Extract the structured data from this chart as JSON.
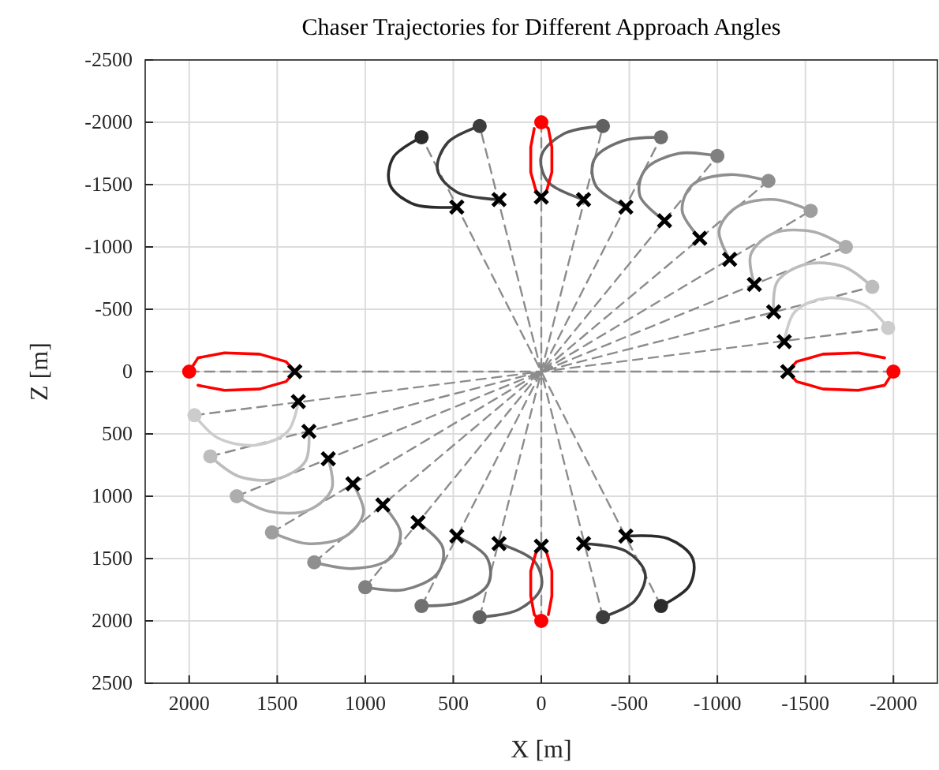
{
  "chart_data": {
    "type": "line",
    "title": "Chaser Trajectories for Different Approach Angles",
    "xlabel": "X [m]",
    "ylabel": "Z [m]",
    "xlim": [
      2250,
      -2250
    ],
    "xticks": [
      2000,
      1500,
      1000,
      500,
      0,
      -500,
      -1000,
      -1500,
      -2000
    ],
    "ylim": [
      2500,
      -2500
    ],
    "yticks": [
      -2500,
      -2000,
      -1500,
      -1000,
      -500,
      0,
      500,
      1000,
      1500,
      2000,
      2500
    ],
    "grid": true,
    "series": [
      {
        "line_style": "dashed",
        "color": "#8c8c8c",
        "x": [
          2000,
          0,
          -2000
        ],
        "values": [
          0,
          0,
          0
        ]
      },
      {
        "line_style": "dashed",
        "color": "#8c8c8c",
        "x": [
          1970,
          0,
          -1970
        ],
        "values": [
          350,
          0,
          -350
        ]
      },
      {
        "line_style": "dashed",
        "color": "#8c8c8c",
        "x": [
          1880,
          0,
          -1880
        ],
        "values": [
          680,
          0,
          -680
        ]
      },
      {
        "line_style": "dashed",
        "color": "#8c8c8c",
        "x": [
          1730,
          0,
          -1730
        ],
        "values": [
          1000,
          0,
          -1000
        ]
      },
      {
        "line_style": "dashed",
        "color": "#8c8c8c",
        "x": [
          1530,
          0,
          -1530
        ],
        "values": [
          1290,
          0,
          -1290
        ]
      },
      {
        "line_style": "dashed",
        "color": "#8c8c8c",
        "x": [
          1290,
          0,
          -1290
        ],
        "values": [
          1530,
          0,
          -1530
        ]
      },
      {
        "line_style": "dashed",
        "color": "#8c8c8c",
        "x": [
          1000,
          0,
          -1000
        ],
        "values": [
          1730,
          0,
          -1730
        ]
      },
      {
        "line_style": "dashed",
        "color": "#8c8c8c",
        "x": [
          680,
          0,
          -680
        ],
        "values": [
          1880,
          0,
          -1880
        ]
      },
      {
        "line_style": "dashed",
        "color": "#8c8c8c",
        "x": [
          350,
          0,
          -350
        ],
        "values": [
          1970,
          0,
          -1970
        ]
      },
      {
        "line_style": "dashed",
        "color": "#8c8c8c",
        "x": [
          0,
          0,
          0
        ],
        "values": [
          2000,
          0,
          -2000
        ]
      },
      {
        "line_style": "dashed",
        "color": "#8c8c8c",
        "x": [
          -350,
          0,
          350
        ],
        "values": [
          1970,
          0,
          -1970
        ]
      },
      {
        "line_style": "dashed",
        "color": "#8c8c8c",
        "x": [
          -680,
          0,
          680
        ],
        "values": [
          1880,
          0,
          -1880
        ]
      },
      {
        "color": "#ff0000",
        "x": [
          -2000,
          -1950,
          -1800,
          -1600,
          -1450,
          -1400,
          -1450,
          -1600,
          -1800,
          -1950
        ],
        "values": [
          0,
          110,
          150,
          140,
          80,
          0,
          -80,
          -140,
          -150,
          -110
        ]
      },
      {
        "color": "#cccccc",
        "x": [
          -1970,
          -1840,
          -1620,
          -1440,
          -1380
        ],
        "values": [
          -350,
          -530,
          -590,
          -480,
          -240
        ]
      },
      {
        "color": "#bdbdbd",
        "x": [
          -1880,
          -1720,
          -1500,
          -1340,
          -1320
        ],
        "values": [
          -680,
          -840,
          -860,
          -720,
          -480
        ]
      },
      {
        "color": "#adadad",
        "x": [
          -1730,
          -1550,
          -1320,
          -1190,
          -1210
        ],
        "values": [
          -1000,
          -1120,
          -1110,
          -940,
          -700
        ]
      },
      {
        "color": "#9e9e9e",
        "x": [
          -1530,
          -1330,
          -1110,
          -1010,
          -1070
        ],
        "values": [
          -1290,
          -1380,
          -1320,
          -1130,
          -900
        ]
      },
      {
        "color": "#8f8f8f",
        "x": [
          -1290,
          -1070,
          -860,
          -800,
          -900
        ],
        "values": [
          -1530,
          -1580,
          -1500,
          -1290,
          -1070
        ]
      },
      {
        "color": "#808080",
        "x": [
          -1000,
          -780,
          -590,
          -560,
          -700
        ],
        "values": [
          -1730,
          -1750,
          -1620,
          -1410,
          -1210
        ]
      },
      {
        "color": "#707070",
        "x": [
          -680,
          -460,
          -300,
          -310,
          -480
        ],
        "values": [
          -1880,
          -1850,
          -1700,
          -1490,
          -1320
        ]
      },
      {
        "color": "#616161",
        "x": [
          -350,
          -130,
          0,
          -40,
          -240
        ],
        "values": [
          -1970,
          -1910,
          -1730,
          -1520,
          -1380
        ]
      },
      {
        "color": "#ff0000",
        "x": [
          0,
          -40,
          -60,
          -60,
          -30,
          0,
          30,
          60,
          60,
          40
        ],
        "values": [
          -2000,
          -1950,
          -1800,
          -1600,
          -1450,
          -1400,
          -1450,
          -1600,
          -1800,
          -1950
        ]
      },
      {
        "color": "#3d3d3d",
        "x": [
          350,
          530,
          590,
          480,
          240
        ],
        "values": [
          -1970,
          -1840,
          -1620,
          -1440,
          -1380
        ]
      },
      {
        "color": "#2b2b2b",
        "x": [
          680,
          840,
          860,
          720,
          480
        ],
        "values": [
          -1880,
          -1720,
          -1500,
          -1340,
          -1320
        ]
      },
      {
        "color": "#ff0000",
        "x": [
          2000,
          1950,
          1800,
          1600,
          1450,
          1400,
          1450,
          1600,
          1800,
          1950
        ],
        "values": [
          0,
          -110,
          -150,
          -140,
          -80,
          0,
          80,
          140,
          150,
          110
        ]
      },
      {
        "color": "#cccccc",
        "x": [
          1970,
          1840,
          1620,
          1440,
          1380
        ],
        "values": [
          350,
          530,
          590,
          480,
          240
        ]
      },
      {
        "color": "#bdbdbd",
        "x": [
          1880,
          1720,
          1500,
          1340,
          1320
        ],
        "values": [
          680,
          840,
          860,
          720,
          480
        ]
      },
      {
        "color": "#adadad",
        "x": [
          1730,
          1550,
          1320,
          1190,
          1210
        ],
        "values": [
          1000,
          1120,
          1110,
          940,
          700
        ]
      },
      {
        "color": "#9e9e9e",
        "x": [
          1530,
          1330,
          1110,
          1010,
          1070
        ],
        "values": [
          1290,
          1380,
          1320,
          1130,
          900
        ]
      },
      {
        "color": "#8f8f8f",
        "x": [
          1290,
          1070,
          860,
          800,
          900
        ],
        "values": [
          1530,
          1580,
          1500,
          1290,
          1070
        ]
      },
      {
        "color": "#808080",
        "x": [
          1000,
          780,
          590,
          560,
          700
        ],
        "values": [
          1730,
          1750,
          1620,
          1410,
          1210
        ]
      },
      {
        "color": "#707070",
        "x": [
          680,
          460,
          300,
          310,
          480
        ],
        "values": [
          1880,
          1850,
          1700,
          1490,
          1320
        ]
      },
      {
        "color": "#616161",
        "x": [
          350,
          130,
          0,
          40,
          240
        ],
        "values": [
          1970,
          1910,
          1730,
          1520,
          1380
        ]
      },
      {
        "color": "#ff0000",
        "x": [
          0,
          40,
          60,
          60,
          30,
          0,
          -30,
          -60,
          -60,
          -40
        ],
        "values": [
          2000,
          1950,
          1800,
          1600,
          1450,
          1400,
          1450,
          1600,
          1800,
          1950
        ]
      },
      {
        "color": "#3d3d3d",
        "x": [
          -350,
          -530,
          -590,
          -480,
          -240
        ],
        "values": [
          1970,
          1840,
          1620,
          1440,
          1380
        ]
      },
      {
        "color": "#2b2b2b",
        "x": [
          -680,
          -840,
          -860,
          -720,
          -480
        ],
        "values": [
          1880,
          1720,
          1500,
          1340,
          1320
        ]
      },
      {
        "type": "scatter",
        "marker": "circle",
        "colors": [
          "#ff0000",
          "#cccccc",
          "#bdbdbd",
          "#adadad",
          "#9e9e9e",
          "#8f8f8f",
          "#808080",
          "#707070",
          "#616161",
          "#ff0000",
          "#3d3d3d",
          "#2b2b2b",
          "#ff0000",
          "#cccccc",
          "#bdbdbd",
          "#adadad",
          "#9e9e9e",
          "#8f8f8f",
          "#808080",
          "#707070",
          "#616161",
          "#ff0000",
          "#3d3d3d",
          "#2b2b2b"
        ],
        "x": [
          -2000,
          -1970,
          -1880,
          -1730,
          -1530,
          -1290,
          -1000,
          -680,
          -350,
          0,
          350,
          680,
          2000,
          1970,
          1880,
          1730,
          1530,
          1290,
          1000,
          680,
          350,
          0,
          -350,
          -680
        ],
        "values": [
          0,
          -350,
          -680,
          -1000,
          -1290,
          -1530,
          -1730,
          -1880,
          -1970,
          -2000,
          -1970,
          -1880,
          0,
          350,
          680,
          1000,
          1290,
          1530,
          1730,
          1880,
          1970,
          2000,
          1970,
          1880
        ]
      },
      {
        "type": "scatter",
        "marker": "cross",
        "color": "#000000",
        "x": [
          -1400,
          -1380,
          -1320,
          -1210,
          -1070,
          -900,
          -700,
          -480,
          -240,
          0,
          240,
          480,
          1400,
          1380,
          1320,
          1210,
          1070,
          900,
          700,
          480,
          240,
          0,
          -240,
          -480
        ],
        "values": [
          0,
          -240,
          -480,
          -700,
          -900,
          -1070,
          -1210,
          -1320,
          -1380,
          -1400,
          -1380,
          -1320,
          0,
          240,
          480,
          700,
          900,
          1070,
          1210,
          1320,
          1380,
          1400,
          1380,
          1320
        ]
      }
    ]
  }
}
